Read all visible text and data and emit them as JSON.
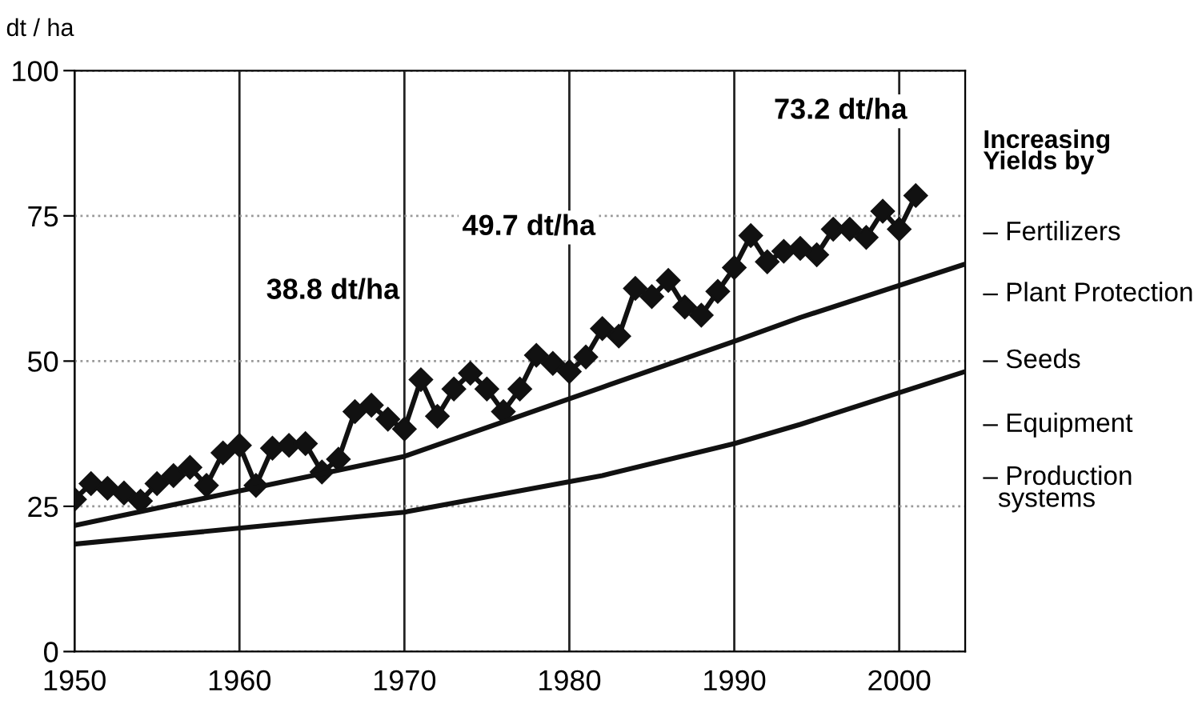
{
  "chart_data": {
    "type": "line",
    "ylabel": "dt / ha",
    "x": [
      1950,
      1951,
      1952,
      1953,
      1954,
      1955,
      1956,
      1957,
      1958,
      1959,
      1960,
      1961,
      1962,
      1963,
      1964,
      1965,
      1966,
      1967,
      1968,
      1969,
      1970,
      1971,
      1972,
      1973,
      1974,
      1975,
      1976,
      1977,
      1978,
      1979,
      1980,
      1981,
      1982,
      1983,
      1984,
      1985,
      1986,
      1987,
      1988,
      1989,
      1990,
      1991,
      1992,
      1993,
      1994,
      1995,
      1996,
      1997,
      1998,
      1999,
      2000,
      2001
    ],
    "series": [
      {
        "color": "#111111",
        "marker": "diamond",
        "values": [
          26.2,
          28.9,
          28.1,
          27.3,
          25.9,
          28.9,
          30.3,
          31.7,
          28.6,
          34.2,
          35.5,
          28.6,
          35.0,
          35.5,
          35.8,
          30.9,
          33.1,
          41.3,
          42.4,
          40.0,
          38.3,
          46.8,
          40.5,
          45.2,
          47.9,
          45.2,
          41.3,
          45.2,
          51.0,
          49.6,
          48.2,
          50.7,
          55.6,
          54.3,
          62.5,
          61.1,
          63.9,
          59.3,
          57.9,
          62.0,
          66.1,
          71.6,
          67.1,
          68.9,
          69.4,
          68.3,
          72.7,
          72.7,
          71.3,
          75.8,
          72.7,
          78.5
        ]
      },
      {
        "color": "#111111",
        "marker": "none",
        "x": [
          1950,
          1970,
          1982,
          1990,
          1994,
          2004
        ],
        "values": [
          21.7,
          33.6,
          45.5,
          53.4,
          57.5,
          66.7
        ]
      },
      {
        "color": "#111111",
        "marker": "none",
        "x": [
          1950,
          1970,
          1982,
          1990,
          1994,
          2004
        ],
        "values": [
          18.5,
          24.0,
          30.3,
          35.8,
          39.1,
          48.2
        ]
      }
    ],
    "xlim": [
      1950,
      2004
    ],
    "xticks": [
      1950,
      1960,
      1970,
      1980,
      1990,
      2000
    ],
    "ylim": [
      0,
      100
    ],
    "yticks": [
      0,
      25,
      50,
      75,
      100
    ],
    "grid": true,
    "legend": false,
    "annotations": [
      "38.8 dt/ha",
      "49.7 dt/ha",
      "73.2 dt/ha",
      "Increasing\nYields by",
      "– Fertilizers",
      "– Plant Protection",
      "– Seeds",
      "– Equipment",
      "– Production\n  systems"
    ]
  }
}
